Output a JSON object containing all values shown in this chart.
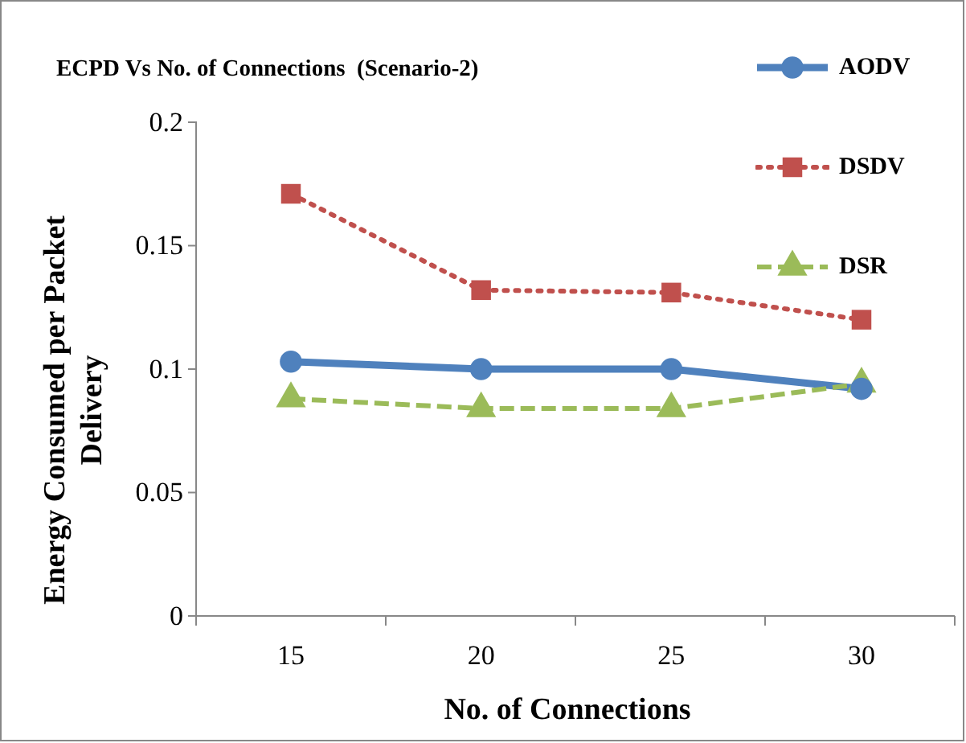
{
  "chart_data": {
    "type": "line",
    "title": "ECPD Vs No. of Connections  (Scenario-2)",
    "xlabel": "No. of Connections",
    "ylabel": "Energy Consumed per Packet Delivery",
    "categories": [
      "15",
      "20",
      "25",
      "30"
    ],
    "ylim": [
      0,
      0.2
    ],
    "yticks": [
      0,
      0.05,
      0.1,
      0.15,
      0.2
    ],
    "grid": false,
    "legend": "top right",
    "series": [
      {
        "name": "AODV",
        "color": "#4f81bd",
        "values": [
          0.103,
          0.1,
          0.1,
          0.092
        ],
        "marker": "circle",
        "line_style": "solid"
      },
      {
        "name": "DSDV",
        "color": "#c0504d",
        "values": [
          0.171,
          0.132,
          0.131,
          0.12
        ],
        "marker": "square",
        "line_style": "dotted"
      },
      {
        "name": "DSR",
        "color": "#9bbb59",
        "values": [
          0.088,
          0.084,
          0.084,
          0.094
        ],
        "marker": "triangle",
        "line_style": "dashed"
      }
    ]
  }
}
